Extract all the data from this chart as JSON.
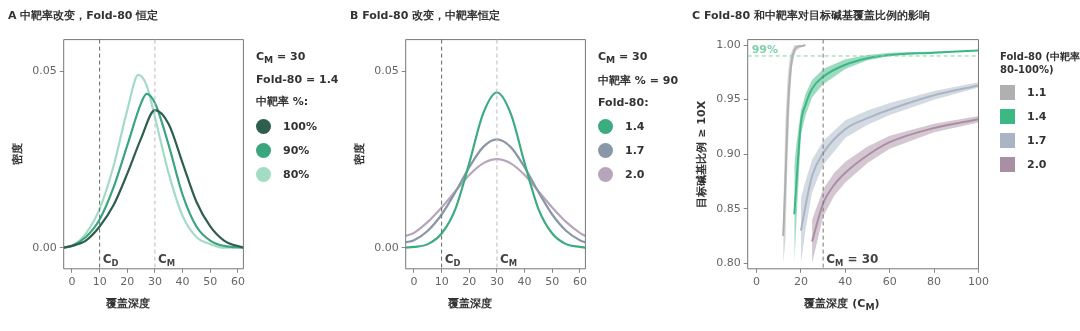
{
  "chart_data": [
    {
      "type": "line",
      "title": "A  中靶率改变，Fold-80 恒定",
      "xlabel": "覆盖深度",
      "ylabel": "密度",
      "legend_title": "中靶率 %:",
      "legend": "right",
      "annotations": [
        "C$_{M}$ = 30",
        "Fold-80 = 1.4"
      ],
      "xlim": [
        -3,
        62
      ],
      "xticks": [
        0,
        10,
        20,
        30,
        40,
        50,
        60
      ],
      "ylim": [
        -0.006,
        0.059
      ],
      "yticks": [
        {
          "value": 0,
          "label": "0.00"
        },
        {
          "value": 0.05,
          "label": "0.05"
        }
      ],
      "ref_lines": [
        {
          "axis": "x",
          "value": 10,
          "label": "C$_{D}$",
          "color": "#666666",
          "line_style": "dashed"
        },
        {
          "axis": "x",
          "value": 30,
          "label": "C$_{M}$",
          "color": "#bbbbbb",
          "line_style": "dashed"
        }
      ],
      "series": [
        {
          "name": "100%",
          "color": "#2f5e4e",
          "x": [
            -3,
            0,
            5,
            10,
            15,
            20,
            25,
            30,
            35,
            40,
            45,
            50,
            55,
            62
          ],
          "values": [
            0,
            0.0005,
            0.002,
            0.006,
            0.012,
            0.021,
            0.031,
            0.039,
            0.035,
            0.024,
            0.013,
            0.006,
            0.002,
            0
          ]
        },
        {
          "name": "90%",
          "color": "#3aa57f",
          "x": [
            -3,
            0,
            5,
            10,
            15,
            20,
            25,
            27,
            30,
            35,
            40,
            45,
            50,
            55,
            62
          ],
          "values": [
            0,
            0.0005,
            0.003,
            0.008,
            0.017,
            0.029,
            0.041,
            0.0436,
            0.041,
            0.029,
            0.015,
            0.006,
            0.002,
            0.0005,
            0
          ]
        },
        {
          "name": "80%",
          "color": "#a3dcc4",
          "x": [
            -3,
            0,
            5,
            10,
            15,
            20,
            24,
            27,
            30,
            35,
            40,
            45,
            50,
            55,
            62
          ],
          "values": [
            0,
            0.0005,
            0.004,
            0.011,
            0.023,
            0.039,
            0.049,
            0.046,
            0.037,
            0.021,
            0.009,
            0.003,
            0.001,
            0,
            0
          ]
        }
      ]
    },
    {
      "type": "line",
      "title": "B  Fold-80 改变，中靶率恒定",
      "xlabel": "覆盖深度",
      "ylabel": "密度",
      "legend_title": "Fold-80:",
      "legend": "right",
      "annotations": [
        "C$_{M}$ = 30",
        "中靶率 % = 90"
      ],
      "xlim": [
        -3,
        62
      ],
      "xticks": [
        0,
        10,
        20,
        30,
        40,
        50,
        60
      ],
      "ylim": [
        -0.006,
        0.059
      ],
      "yticks": [
        {
          "value": 0,
          "label": "0.00"
        },
        {
          "value": 0.05,
          "label": "0.05"
        }
      ],
      "ref_lines": [
        {
          "axis": "x",
          "value": 10,
          "label": "C$_{D}$",
          "color": "#666666",
          "line_style": "dashed"
        },
        {
          "axis": "x",
          "value": 30,
          "label": "C$_{M}$",
          "color": "#bbbbbb",
          "line_style": "dashed"
        }
      ],
      "series": [
        {
          "name": "1.4",
          "color": "#3dab80",
          "x": [
            -3,
            0,
            5,
            10,
            15,
            20,
            25,
            30,
            35,
            40,
            45,
            50,
            55,
            60,
            62
          ],
          "values": [
            0,
            0.0002,
            0.001,
            0.004,
            0.011,
            0.024,
            0.038,
            0.044,
            0.038,
            0.024,
            0.011,
            0.004,
            0.001,
            0.0002,
            0
          ]
        },
        {
          "name": "1.7",
          "color": "#8a97a8",
          "x": [
            -3,
            0,
            5,
            10,
            15,
            20,
            25,
            30,
            35,
            40,
            45,
            50,
            55,
            60,
            62
          ],
          "values": [
            0.0015,
            0.0021,
            0.0048,
            0.0094,
            0.0158,
            0.0228,
            0.0285,
            0.0307,
            0.0285,
            0.0228,
            0.0158,
            0.0094,
            0.0048,
            0.0021,
            0.0015
          ]
        },
        {
          "name": "2.0",
          "color": "#b7a6bb",
          "x": [
            -3,
            0,
            5,
            10,
            15,
            20,
            25,
            30,
            35,
            40,
            45,
            50,
            55,
            60,
            62
          ],
          "values": [
            0.0033,
            0.0042,
            0.0073,
            0.0114,
            0.016,
            0.0206,
            0.0239,
            0.0251,
            0.0239,
            0.0206,
            0.016,
            0.0114,
            0.0073,
            0.0042,
            0.0033
          ]
        }
      ]
    },
    {
      "type": "line",
      "title": "C  Fold-80 和中靶率对目标碱基覆盖比例的影响",
      "xlabel": "覆盖深度 (C$_{M}$)",
      "ylabel": "目标碱基比例 ≥ 10X",
      "legend_title": "Fold-80 (中靶率 80-100%)",
      "legend": "right",
      "xlim": [
        -4,
        100
      ],
      "xticks": [
        0,
        20,
        40,
        60,
        80,
        100
      ],
      "ylim": [
        0.795,
        1.005
      ],
      "yticks": [
        {
          "value": 0.8,
          "label": "0.80"
        },
        {
          "value": 0.85,
          "label": "0.85"
        },
        {
          "value": 0.9,
          "label": "0.90"
        },
        {
          "value": 0.95,
          "label": "0.95"
        },
        {
          "value": 1,
          "label": "1.00"
        }
      ],
      "ref_lines": [
        {
          "axis": "y",
          "value": 0.99,
          "label": "99%",
          "color": "#7fd0ab",
          "line_style": "dashed"
        },
        {
          "axis": "x",
          "value": 30,
          "label": "C$_{M}$ = 30",
          "color": "#777777",
          "line_style": "dashed"
        }
      ],
      "series": [
        {
          "name": "1.1",
          "color": "#b0b0b0",
          "x": [
            12,
            13,
            14,
            15,
            16,
            17,
            18,
            20,
            22
          ],
          "values": [
            0.825,
            0.875,
            0.935,
            0.97,
            0.988,
            0.995,
            0.998,
            0.999,
            1
          ],
          "lower": [
            0.8,
            0.82,
            0.9,
            0.95,
            0.98,
            0.99,
            0.995,
            0.998,
            1
          ],
          "upper": [
            0.85,
            0.93,
            0.97,
            0.99,
            0.995,
            1,
            1,
            1,
            1
          ]
        },
        {
          "name": "1.4",
          "color": "#3cb884",
          "x": [
            17,
            18,
            20,
            22,
            25,
            30,
            40,
            50,
            60,
            80,
            100
          ],
          "values": [
            0.845,
            0.875,
            0.929,
            0.945,
            0.96,
            0.971,
            0.982,
            0.988,
            0.991,
            0.993,
            0.995
          ],
          "lower": [
            0.8,
            0.84,
            0.918,
            0.935,
            0.952,
            0.964,
            0.978,
            0.986,
            0.99,
            0.993,
            0.995
          ],
          "upper": [
            0.89,
            0.91,
            0.94,
            0.955,
            0.968,
            0.978,
            0.987,
            0.991,
            0.993,
            0.994,
            0.995
          ]
        },
        {
          "name": "1.7",
          "color": "#a9b5c4",
          "x": [
            20,
            22,
            25,
            30,
            40,
            50,
            60,
            80,
            100
          ],
          "values": [
            0.83,
            0.852,
            0.88,
            0.901,
            0.923,
            0.933,
            0.941,
            0.954,
            0.963
          ],
          "lower": [
            0.8,
            0.83,
            0.865,
            0.89,
            0.915,
            0.927,
            0.936,
            0.95,
            0.961
          ],
          "upper": [
            0.86,
            0.875,
            0.895,
            0.912,
            0.931,
            0.94,
            0.947,
            0.958,
            0.966
          ]
        },
        {
          "name": "2.0",
          "color": "#a98fa3",
          "x": [
            25,
            30,
            35,
            40,
            50,
            60,
            80,
            100
          ],
          "values": [
            0.82,
            0.855,
            0.872,
            0.883,
            0.899,
            0.911,
            0.924,
            0.932
          ],
          "lower": [
            0.8,
            0.843,
            0.862,
            0.874,
            0.892,
            0.905,
            0.92,
            0.929
          ],
          "upper": [
            0.84,
            0.868,
            0.883,
            0.893,
            0.907,
            0.917,
            0.928,
            0.935
          ]
        }
      ]
    }
  ]
}
